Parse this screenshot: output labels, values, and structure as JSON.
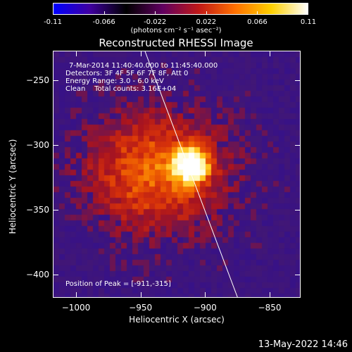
{
  "colorbar": {
    "tick_labels": [
      "-0.11",
      "-0.066",
      "-0.022",
      "0.022",
      "0.066",
      "0.11"
    ],
    "unit_label": "(photons cm⁻² s⁻¹ asec⁻²)",
    "colors": [
      "#0000ff",
      "#4000a0",
      "#000000",
      "#600060",
      "#c01818",
      "#ff7000",
      "#ffd000",
      "#ffffff"
    ]
  },
  "title": "Reconstructed RHESSI Image",
  "info": {
    "time_range": "7-Mar-2014 11:40:40.000 to 11:45:40.000",
    "detectors": "Detectors: 3F 4F 5F 6F 7F 8F, Att 0",
    "energy": "Energy Range: 3.0 - 6.0 keV",
    "clean": "Clean    Total counts: 3.16E+04",
    "peak": "Position of Peak = [-911,-315]"
  },
  "axes": {
    "xlabel": "Heliocentric X (arcsec)",
    "ylabel": "Heliocentric Y (arcsec)",
    "xticks": [
      "-1000",
      "-950",
      "-900",
      "-850"
    ],
    "yticks": [
      "-250",
      "-300",
      "-350",
      "-400"
    ],
    "xrange": [
      -1018,
      -826
    ],
    "yrange": [
      -227,
      -418
    ]
  },
  "image": {
    "peak_xy": [
      -911,
      -315
    ],
    "background_color": "#4a1a6e"
  },
  "timestamp": "13-May-2022 14:46"
}
